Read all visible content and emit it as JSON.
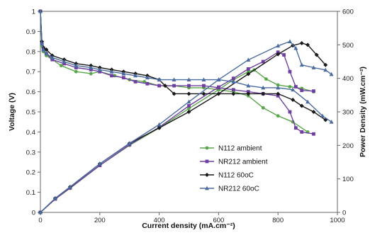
{
  "chart_data": {
    "type": "line",
    "xlabel": "Current density (mA.cm⁻²)",
    "ylabel": "Voltage (V)",
    "y2label": "Power Density (mW.cm⁻²)",
    "xlim": [
      0,
      1000
    ],
    "ylim": [
      0,
      1
    ],
    "y2lim": [
      0,
      600
    ],
    "x_ticks": [
      "0",
      "200",
      "400",
      "600",
      "800",
      "1000"
    ],
    "y_ticks": [
      "0",
      "0.1",
      "0.2",
      "0.3",
      "0.4",
      "0.5",
      "0.6",
      "0.7",
      "0.8",
      "0.9",
      "1"
    ],
    "y2_ticks": [
      "0",
      "100",
      "200",
      "300",
      "400",
      "500",
      "600"
    ],
    "grid": false,
    "legend_position": "bottom-center",
    "series": [
      {
        "name": "N112 ambient",
        "color": "#5aa64a",
        "marker": "circle",
        "voltage": {
          "x": [
            0,
            5,
            10,
            20,
            40,
            70,
            120,
            170,
            200,
            250,
            300,
            350,
            400,
            450,
            500,
            550,
            600,
            650,
            700,
            750,
            800,
            850,
            900
          ],
          "y": [
            1.0,
            0.83,
            0.8,
            0.78,
            0.76,
            0.73,
            0.7,
            0.69,
            0.7,
            0.68,
            0.66,
            0.65,
            0.63,
            0.63,
            0.62,
            0.62,
            0.61,
            0.6,
            0.58,
            0.52,
            0.48,
            0.45,
            0.4
          ]
        },
        "power": {
          "x": [
            0,
            50,
            100,
            200,
            300,
            400,
            500,
            600,
            650,
            700,
            720,
            760,
            800,
            840,
            880,
            920
          ],
          "y": [
            0,
            40,
            72,
            140,
            200,
            252,
            310,
            366,
            396,
            420,
            425,
            398,
            380,
            375,
            370,
            360
          ]
        }
      },
      {
        "name": "NR212 ambient",
        "color": "#6f3fa0",
        "marker": "square",
        "voltage": {
          "x": [
            0,
            5,
            10,
            20,
            40,
            80,
            120,
            170,
            200,
            240,
            280,
            320,
            360,
            400,
            450,
            500,
            550,
            600,
            650,
            700,
            750,
            800,
            840,
            860,
            880,
            920
          ],
          "y": [
            1.0,
            0.84,
            0.81,
            0.79,
            0.76,
            0.74,
            0.72,
            0.71,
            0.7,
            0.68,
            0.67,
            0.65,
            0.64,
            0.63,
            0.63,
            0.63,
            0.63,
            0.62,
            0.61,
            0.6,
            0.59,
            0.58,
            0.5,
            0.42,
            0.4,
            0.39
          ]
        },
        "power": {
          "x": [
            0,
            50,
            100,
            200,
            300,
            400,
            500,
            600,
            650,
            700,
            750,
            800,
            820,
            840,
            860,
            880,
            920
          ],
          "y": [
            0,
            40,
            73,
            140,
            202,
            254,
            318,
            374,
            400,
            428,
            450,
            478,
            470,
            420,
            375,
            364,
            362
          ]
        }
      },
      {
        "name": "N112 60oC",
        "color": "#1a1a1a",
        "marker": "diamond",
        "voltage": {
          "x": [
            0,
            5,
            10,
            20,
            40,
            80,
            120,
            170,
            200,
            240,
            280,
            320,
            360,
            400,
            420,
            450,
            500,
            550,
            600,
            650,
            700,
            750,
            800,
            850,
            880,
            920,
            960
          ],
          "y": [
            1.0,
            0.85,
            0.82,
            0.81,
            0.78,
            0.76,
            0.74,
            0.73,
            0.72,
            0.71,
            0.7,
            0.69,
            0.68,
            0.66,
            0.63,
            0.59,
            0.59,
            0.59,
            0.59,
            0.59,
            0.59,
            0.59,
            0.59,
            0.56,
            0.53,
            0.5,
            0.46
          ]
        },
        "power": {
          "x": [
            0,
            50,
            100,
            200,
            300,
            400,
            500,
            600,
            700,
            800,
            850,
            880,
            900,
            930,
            960
          ],
          "y": [
            0,
            42,
            76,
            145,
            206,
            252,
            300,
            354,
            413,
            472,
            498,
            505,
            500,
            470,
            440
          ]
        }
      },
      {
        "name": "NR212 60oC",
        "color": "#4a6ba0",
        "marker": "triangle",
        "voltage": {
          "x": [
            0,
            5,
            10,
            20,
            40,
            80,
            120,
            170,
            200,
            240,
            280,
            320,
            360,
            400,
            450,
            500,
            550,
            600,
            650,
            700,
            750,
            800,
            850,
            900,
            950,
            980
          ],
          "y": [
            1.0,
            0.84,
            0.81,
            0.79,
            0.77,
            0.75,
            0.73,
            0.72,
            0.71,
            0.7,
            0.69,
            0.68,
            0.67,
            0.66,
            0.66,
            0.66,
            0.66,
            0.66,
            0.65,
            0.63,
            0.62,
            0.62,
            0.61,
            0.55,
            0.48,
            0.45
          ]
        },
        "power": {
          "x": [
            0,
            50,
            100,
            200,
            300,
            400,
            500,
            600,
            700,
            800,
            840,
            860,
            880,
            920,
            960,
            980
          ],
          "y": [
            0,
            42,
            76,
            145,
            206,
            262,
            330,
            396,
            455,
            497,
            510,
            490,
            440,
            432,
            425,
            412
          ]
        }
      }
    ]
  }
}
